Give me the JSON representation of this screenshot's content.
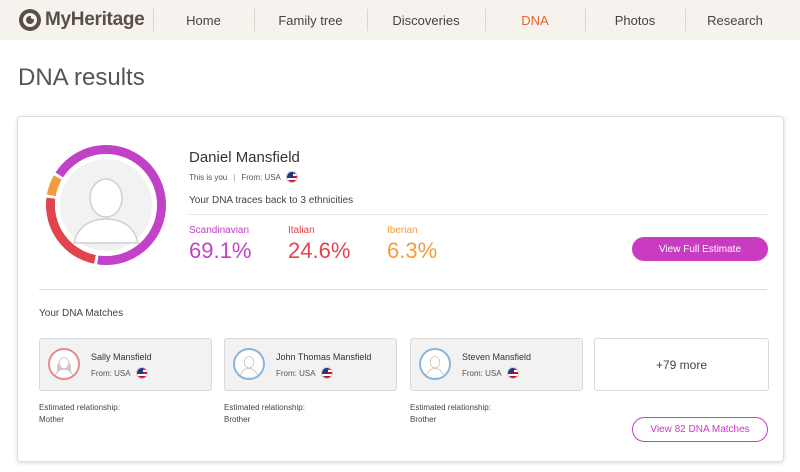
{
  "brand": {
    "name": "MyHeritage"
  },
  "nav": [
    {
      "label": "Home",
      "active": false
    },
    {
      "label": "Family tree",
      "active": false
    },
    {
      "label": "Discoveries",
      "active": false
    },
    {
      "label": "DNA",
      "active": true
    },
    {
      "label": "Photos",
      "active": false
    },
    {
      "label": "Research",
      "active": false
    }
  ],
  "page_title": "DNA results",
  "profile": {
    "name": "Daniel Mansfield",
    "this_is_you": "This is you",
    "from": "From: USA",
    "flag_icon": "us-flag-icon",
    "traces_text": "Your DNA traces back to 3 ethnicities"
  },
  "ethnicities": [
    {
      "name": "Scandinavian",
      "value": "69.1%",
      "fraction": 0.691,
      "color": "#c142c7"
    },
    {
      "name": "Italian",
      "value": "24.6%",
      "fraction": 0.246,
      "color": "#e0454d"
    },
    {
      "name": "Iberian",
      "value": "6.3%",
      "fraction": 0.063,
      "color": "#f39c3d"
    }
  ],
  "buttons": {
    "view_full_estimate": "View Full Estimate",
    "view_matches": "View 82 DNA Matches"
  },
  "matches_title": "Your DNA Matches",
  "matches": [
    {
      "name": "Sally Mansfield",
      "from": "From: USA",
      "rel_label": "Estimated relationship:",
      "relationship": "Mother",
      "gender": "female",
      "ring": "#e58d8d"
    },
    {
      "name": "John Thomas Mansfield",
      "from": "From: USA",
      "rel_label": "Estimated relationship:",
      "relationship": "Brother",
      "gender": "male",
      "ring": "#8bb6d9"
    },
    {
      "name": "Steven Mansfield",
      "from": "From: USA",
      "rel_label": "Estimated relationship:",
      "relationship": "Brother",
      "gender": "male",
      "ring": "#8bb6d9"
    }
  ],
  "more_matches": "+79 more"
}
